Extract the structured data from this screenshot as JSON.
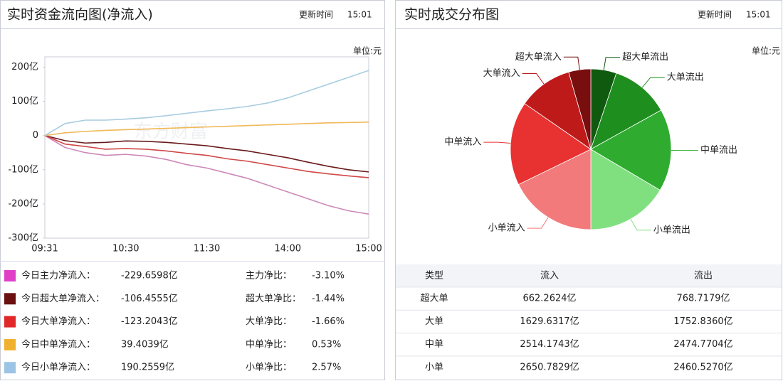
{
  "chart_data": [
    {
      "type": "line",
      "title": "实时资金流向图(净流入)",
      "update_label": "更新时间",
      "update_time": "15:01",
      "unit": "单位:元",
      "watermark": "东方财富",
      "categories": [
        "09:31",
        null,
        null,
        null,
        "10:30",
        null,
        null,
        null,
        "11:30",
        null,
        null,
        null,
        "14:00",
        null,
        null,
        null,
        "15:00"
      ],
      "series": [
        {
          "name": "今日主力净流入：",
          "color": "#cc88b8",
          "swatch": "#e040c8",
          "values": [
            0,
            -35,
            -50,
            -58,
            -55,
            -60,
            -70,
            -85,
            -95,
            -110,
            -125,
            -145,
            -165,
            -185,
            -205,
            -220,
            -229.66
          ]
        },
        {
          "name": "今日超大单净流入：",
          "color": "#6a1a1a",
          "swatch": "#6a1010",
          "values": [
            0,
            -15,
            -22,
            -20,
            -16,
            -17,
            -20,
            -25,
            -30,
            -38,
            -45,
            -55,
            -65,
            -78,
            -90,
            -100,
            -106.46
          ]
        },
        {
          "name": "今日大单净流入：",
          "color": "#d04848",
          "swatch": "#e02828",
          "values": [
            0,
            -25,
            -32,
            -40,
            -38,
            -40,
            -45,
            -52,
            -58,
            -68,
            -75,
            -85,
            -95,
            -105,
            -112,
            -118,
            -123.2
          ]
        },
        {
          "name": "今日中单净流入：",
          "color": "#f0b858",
          "swatch": "#f0b030",
          "values": [
            0,
            8,
            12,
            15,
            17,
            19,
            21,
            23,
            25,
            27,
            29,
            31,
            33,
            35,
            37,
            38,
            39.4
          ]
        },
        {
          "name": "今日小单净流入：",
          "color": "#a8cce0",
          "swatch": "#9cc4e4",
          "values": [
            0,
            35,
            45,
            45,
            48,
            52,
            58,
            65,
            72,
            78,
            85,
            95,
            110,
            130,
            150,
            170,
            190.26
          ]
        }
      ],
      "ylim": [
        -300,
        230
      ],
      "yticks": [
        {
          "value": 200,
          "label": "200亿"
        },
        {
          "value": 100,
          "label": "100亿"
        },
        0,
        {
          "value": -100,
          "label": "-100亿"
        },
        {
          "value": -200,
          "label": "-200亿"
        },
        {
          "value": -300,
          "label": "-300亿"
        }
      ],
      "grid": false
    },
    {
      "type": "pie",
      "title": "实时成交分布图",
      "update_label": "更新时间",
      "update_time": "15:01",
      "unit": "单位:元",
      "categories": [
        "超大单流出",
        "大单流出",
        "中单流出",
        "小单流出",
        "小单流入",
        "中单流入",
        "大单流入",
        "超大单流入"
      ],
      "values": [
        768.7179,
        1752.836,
        2474.7704,
        2460.527,
        2650.7829,
        2514.1743,
        1629.6317,
        662.2624
      ],
      "colors": [
        "#0f5a0f",
        "#1e8e1e",
        "#2fac2f",
        "#80e080",
        "#f27a7a",
        "#e83232",
        "#bf1a1a",
        "#780e0e"
      ]
    }
  ],
  "flow_table": {
    "rows": [
      [
        "-229.6598亿",
        "主力净比：",
        "-3.10%"
      ],
      [
        "-106.4555亿",
        "超大单净比：",
        "-1.44%"
      ],
      [
        "-123.2043亿",
        "大单净比：",
        "-1.66%"
      ],
      [
        "39.4039亿",
        "中单净比：",
        "0.53%"
      ],
      [
        "190.2559亿",
        "小单净比：",
        "2.57%"
      ]
    ]
  },
  "deal_table": {
    "header": [
      "类型",
      "流入",
      "流出"
    ],
    "rows": [
      [
        "超大单",
        "662.2624亿",
        "768.7179亿"
      ],
      [
        "大单",
        "1629.6317亿",
        "1752.8360亿"
      ],
      [
        "中单",
        "2514.1743亿",
        "2474.7704亿"
      ],
      [
        "小单",
        "2650.7829亿",
        "2460.5270亿"
      ]
    ]
  }
}
